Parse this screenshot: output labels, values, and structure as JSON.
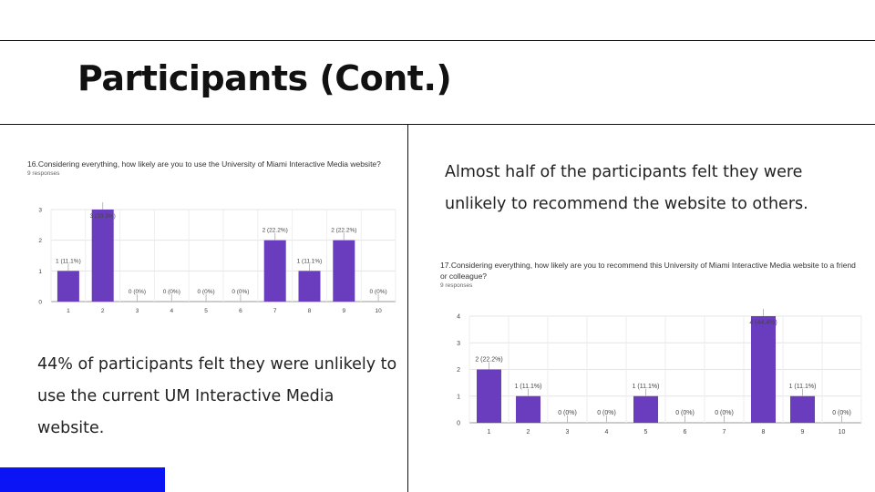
{
  "slide": {
    "title": "Participants (Cont.)",
    "left_text": "44% of participants felt they were unlikely to use the current UM Interactive Media website.",
    "right_text": "Almost half of the participants felt they were unlikely to recommend the website to others.",
    "accent_color": "#0a14f5",
    "bar_color": "#6a3dbf"
  },
  "charts": [
    {
      "question": "16.Considering everything, how likely are you to use the University of Miami Interactive Media website?",
      "responses": "9 responses"
    },
    {
      "question": "17.Considering everything, how likely are you to recommend this University of Miami Interactive Media website to a friend or colleague?",
      "responses": "9 responses"
    }
  ],
  "chart_data": [
    {
      "type": "bar",
      "categories": [
        "1",
        "2",
        "3",
        "4",
        "5",
        "6",
        "7",
        "8",
        "9",
        "10"
      ],
      "values": [
        1,
        3,
        0,
        0,
        0,
        0,
        2,
        1,
        2,
        0
      ],
      "data_labels": [
        "1 (11.1%)",
        "3 (33.3%)",
        "0 (0%)",
        "0 (0%)",
        "0 (0%)",
        "0 (0%)",
        "2 (22.2%)",
        "1 (11.1%)",
        "2 (22.2%)",
        "0 (0%)"
      ],
      "yticks": [
        "0",
        "1",
        "2",
        "3"
      ],
      "ylim": [
        0,
        3
      ],
      "grid": true
    },
    {
      "type": "bar",
      "categories": [
        "1",
        "2",
        "3",
        "4",
        "5",
        "6",
        "7",
        "8",
        "9",
        "10"
      ],
      "values": [
        2,
        1,
        0,
        0,
        1,
        0,
        0,
        4,
        1,
        0
      ],
      "data_labels": [
        "2 (22.2%)",
        "1 (11.1%)",
        "0 (0%)",
        "0 (0%)",
        "1 (11.1%)",
        "0 (0%)",
        "0 (0%)",
        "4 (44.4%)",
        "1 (11.1%)",
        "0 (0%)"
      ],
      "yticks": [
        "0",
        "1",
        "2",
        "3",
        "4"
      ],
      "ylim": [
        0,
        4
      ],
      "grid": true
    }
  ]
}
